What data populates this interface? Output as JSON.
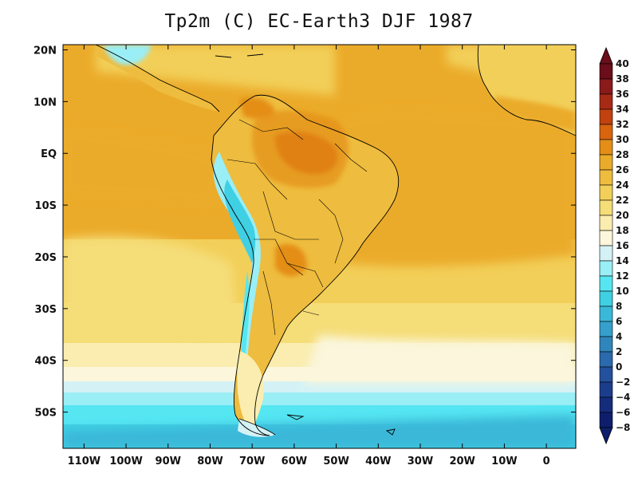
{
  "title": "Tp2m (C)  EC-Earth3 DJF 1987",
  "map": {
    "lon_range": [
      -115,
      7
    ],
    "lat_range": [
      -57,
      21
    ],
    "lon_ticks": [
      {
        "value": -110,
        "label": "110W"
      },
      {
        "value": -100,
        "label": "100W"
      },
      {
        "value": -90,
        "label": "90W"
      },
      {
        "value": -80,
        "label": "80W"
      },
      {
        "value": -70,
        "label": "70W"
      },
      {
        "value": -60,
        "label": "60W"
      },
      {
        "value": -50,
        "label": "50W"
      },
      {
        "value": -40,
        "label": "40W"
      },
      {
        "value": -30,
        "label": "30W"
      },
      {
        "value": -20,
        "label": "20W"
      },
      {
        "value": -10,
        "label": "10W"
      },
      {
        "value": 0,
        "label": "0"
      }
    ],
    "lat_ticks": [
      {
        "value": 20,
        "label": "20N"
      },
      {
        "value": 10,
        "label": "10N"
      },
      {
        "value": 0,
        "label": "EQ"
      },
      {
        "value": -10,
        "label": "10S"
      },
      {
        "value": -20,
        "label": "20S"
      },
      {
        "value": -30,
        "label": "30S"
      },
      {
        "value": -40,
        "label": "40S"
      },
      {
        "value": -50,
        "label": "50S"
      }
    ]
  },
  "colorbar": {
    "levels": [
      "40",
      "38",
      "36",
      "34",
      "32",
      "30",
      "28",
      "26",
      "24",
      "22",
      "20",
      "18",
      "16",
      "14",
      "12",
      "10",
      "8",
      "6",
      "4",
      "2",
      "0",
      "−2",
      "−4",
      "−6",
      "−8"
    ],
    "colors": [
      "#6b0d1a",
      "#8b1a1a",
      "#a72a16",
      "#c2410f",
      "#d8640e",
      "#e48e17",
      "#ebab2a",
      "#eebc3e",
      "#f2cf59",
      "#f5dd78",
      "#faedaf",
      "#fbf6dc",
      "#d4f2f5",
      "#9aeef5",
      "#55e6f2",
      "#3fd0e4",
      "#3ab8d8",
      "#35a0cc",
      "#2f86bd",
      "#2a6aad",
      "#23519d",
      "#1c3d8c",
      "#152c7c",
      "#0e1e6c"
    ]
  }
}
